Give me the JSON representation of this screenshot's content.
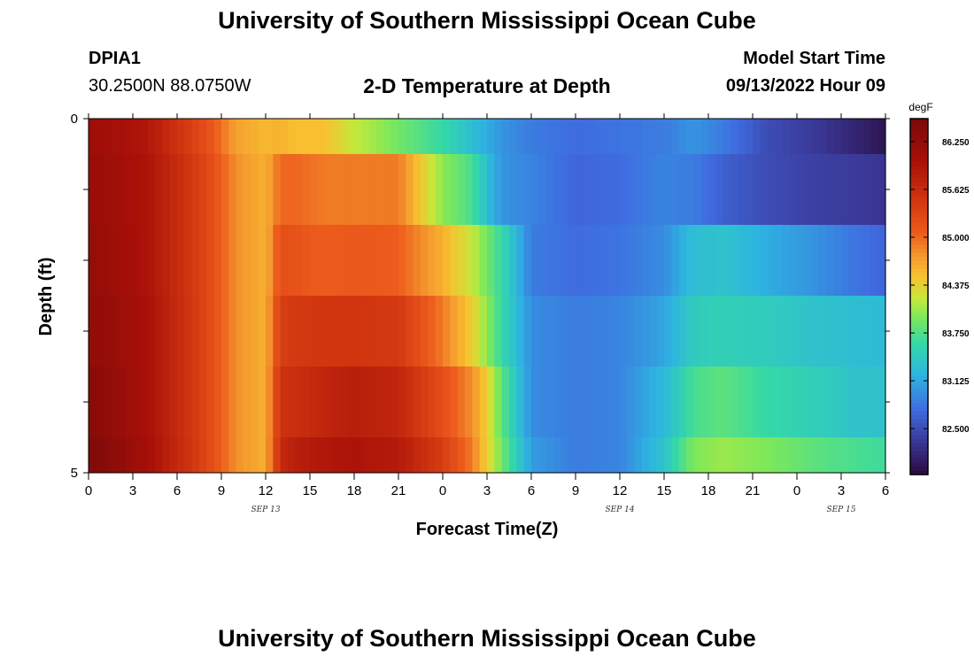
{
  "header": {
    "title_top": "University of Southern Mississippi Ocean Cube",
    "title_bottom": "University of Southern Mississippi Ocean Cube",
    "station_id": "DPIA1",
    "station_coords": "30.2500N  88.0750W",
    "chart_title": "2-D Temperature at Depth",
    "model_label": "Model Start Time",
    "model_time": "09/13/2022 Hour 09"
  },
  "chart_data": {
    "type": "heatmap",
    "title": "2-D Temperature at Depth",
    "xlabel": "Forecast Time(Z)",
    "ylabel": "Depth (ft)",
    "units": "degF",
    "x_hours_from_sep13_00z": [
      0,
      54
    ],
    "x_tick_labels": [
      "0",
      "3",
      "6",
      "9",
      "12",
      "15",
      "18",
      "21",
      "0",
      "3",
      "6",
      "9",
      "12",
      "15",
      "18",
      "21",
      "0",
      "3",
      "6"
    ],
    "date_labels": [
      "SEP 13",
      "SEP 14",
      "SEP 15"
    ],
    "date_label_hours": [
      12,
      36,
      51
    ],
    "y_range_ft": [
      0,
      5
    ],
    "y_tick_labels": [
      "0",
      "5"
    ],
    "depth_bins_ft": [
      [
        0,
        0.5
      ],
      [
        0.5,
        1.5
      ],
      [
        1.5,
        2.5
      ],
      [
        2.5,
        3.5
      ],
      [
        3.5,
        4.5
      ],
      [
        4.5,
        5
      ]
    ],
    "colorbar_ticks": [
      "86.250",
      "85.625",
      "85.000",
      "84.375",
      "83.750",
      "83.125",
      "82.500"
    ],
    "colorbar_range_degF": [
      81.9,
      86.55
    ],
    "colors": [
      "#2a0a3e",
      "#3b3a9a",
      "#3f6ce0",
      "#2db5e0",
      "#34d8a8",
      "#7de85a",
      "#c6e83a",
      "#f8c030",
      "#f49a2e",
      "#ed5c1c",
      "#d03510",
      "#a81008",
      "#7a0a08"
    ],
    "color_stops": [
      81.9,
      82.35,
      82.75,
      83.2,
      83.6,
      83.95,
      84.2,
      84.5,
      84.75,
      85.05,
      85.5,
      86.0,
      86.55
    ],
    "keyframes": [
      {
        "hour": 0,
        "temps": [
          86.15,
          86.2,
          86.25,
          86.3,
          86.4,
          86.5
        ]
      },
      {
        "hour": 4,
        "temps": [
          85.9,
          85.95,
          85.95,
          86.0,
          86.0,
          86.05
        ]
      },
      {
        "hour": 8,
        "temps": [
          85.2,
          85.3,
          85.3,
          85.3,
          85.3,
          85.3
        ]
      },
      {
        "hour": 10,
        "temps": [
          84.7,
          84.8,
          84.8,
          84.8,
          84.8,
          84.8
        ]
      },
      {
        "hour": 12,
        "temps": [
          84.55,
          84.6,
          84.6,
          84.6,
          84.6,
          84.6
        ]
      },
      {
        "hour": 13,
        "temps": [
          84.6,
          85.0,
          85.2,
          85.4,
          85.55,
          85.65
        ]
      },
      {
        "hour": 14,
        "temps": [
          84.5,
          85.0,
          85.15,
          85.45,
          85.6,
          85.8
        ]
      },
      {
        "hour": 16,
        "temps": [
          84.5,
          84.9,
          85.05,
          85.5,
          85.7,
          85.9
        ]
      },
      {
        "hour": 18,
        "temps": [
          84.2,
          84.9,
          85.1,
          85.5,
          85.8,
          85.95
        ]
      },
      {
        "hour": 21,
        "temps": [
          83.9,
          84.9,
          85.05,
          85.45,
          85.7,
          85.85
        ]
      },
      {
        "hour": 24,
        "temps": [
          83.6,
          84.0,
          84.6,
          84.9,
          85.2,
          85.4
        ]
      },
      {
        "hour": 26,
        "temps": [
          83.3,
          83.7,
          84.2,
          84.4,
          84.8,
          84.9
        ]
      },
      {
        "hour": 27,
        "temps": [
          83.15,
          83.3,
          83.9,
          84.0,
          84.4,
          84.4
        ]
      },
      {
        "hour": 28,
        "temps": [
          83.0,
          83.0,
          83.6,
          83.6,
          83.8,
          83.9
        ]
      },
      {
        "hour": 30,
        "temps": [
          82.85,
          82.9,
          82.85,
          82.95,
          82.95,
          83.05
        ]
      },
      {
        "hour": 33,
        "temps": [
          82.75,
          82.7,
          82.75,
          82.85,
          82.85,
          82.85
        ]
      },
      {
        "hour": 36,
        "temps": [
          82.8,
          82.75,
          82.8,
          82.9,
          82.9,
          82.9
        ]
      },
      {
        "hour": 39,
        "temps": [
          82.85,
          82.9,
          82.95,
          83.1,
          83.25,
          83.35
        ]
      },
      {
        "hour": 41,
        "temps": [
          83.0,
          82.85,
          83.3,
          83.45,
          83.7,
          83.95
        ]
      },
      {
        "hour": 43,
        "temps": [
          82.85,
          82.65,
          83.35,
          83.5,
          83.8,
          84.05
        ]
      },
      {
        "hour": 46,
        "temps": [
          82.5,
          82.5,
          83.15,
          83.45,
          83.6,
          83.95
        ]
      },
      {
        "hour": 49,
        "temps": [
          82.35,
          82.4,
          83.0,
          83.35,
          83.5,
          83.8
        ]
      },
      {
        "hour": 52,
        "temps": [
          82.15,
          82.35,
          82.8,
          83.3,
          83.35,
          83.7
        ]
      },
      {
        "hour": 54,
        "temps": [
          82.0,
          82.3,
          82.7,
          83.25,
          83.35,
          83.65
        ]
      }
    ]
  }
}
